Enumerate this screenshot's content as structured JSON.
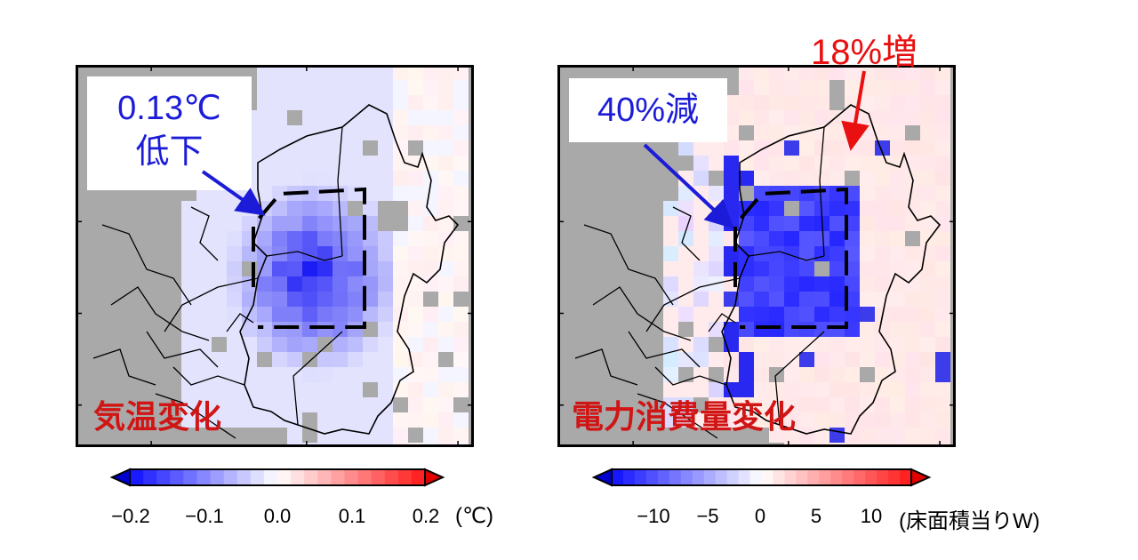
{
  "left_map": {
    "title": "気温変化",
    "annotation_line1": "0.13℃",
    "annotation_line2": "低下",
    "colorbar": {
      "ticks": [
        "−0.2",
        "−0.1",
        "0.0",
        "0.1",
        "0.2"
      ],
      "tick_values": [
        -0.2,
        -0.1,
        0.0,
        0.1,
        0.2
      ],
      "range": [
        -0.22,
        0.22
      ],
      "unit": "(℃)"
    },
    "change_value": -0.13
  },
  "right_map": {
    "title": "電力消費量変化",
    "annotation": "40%減",
    "increase_annotation": "18%増",
    "colorbar": {
      "ticks": [
        "−10",
        "−5",
        "0",
        "5",
        "10"
      ],
      "tick_values": [
        -10,
        -5,
        0,
        5,
        10
      ],
      "range": [
        -13,
        13
      ],
      "unit": "(床面積当りW)"
    },
    "decrease_percent": 40,
    "increase_percent": 18
  },
  "colors": {
    "land_gray": "#a9a9a9",
    "cool_blue": "#1a1ae6",
    "warm_red": "#e8202a",
    "annotation_blue": "#1c1cd8",
    "title_red": "#d01515"
  }
}
